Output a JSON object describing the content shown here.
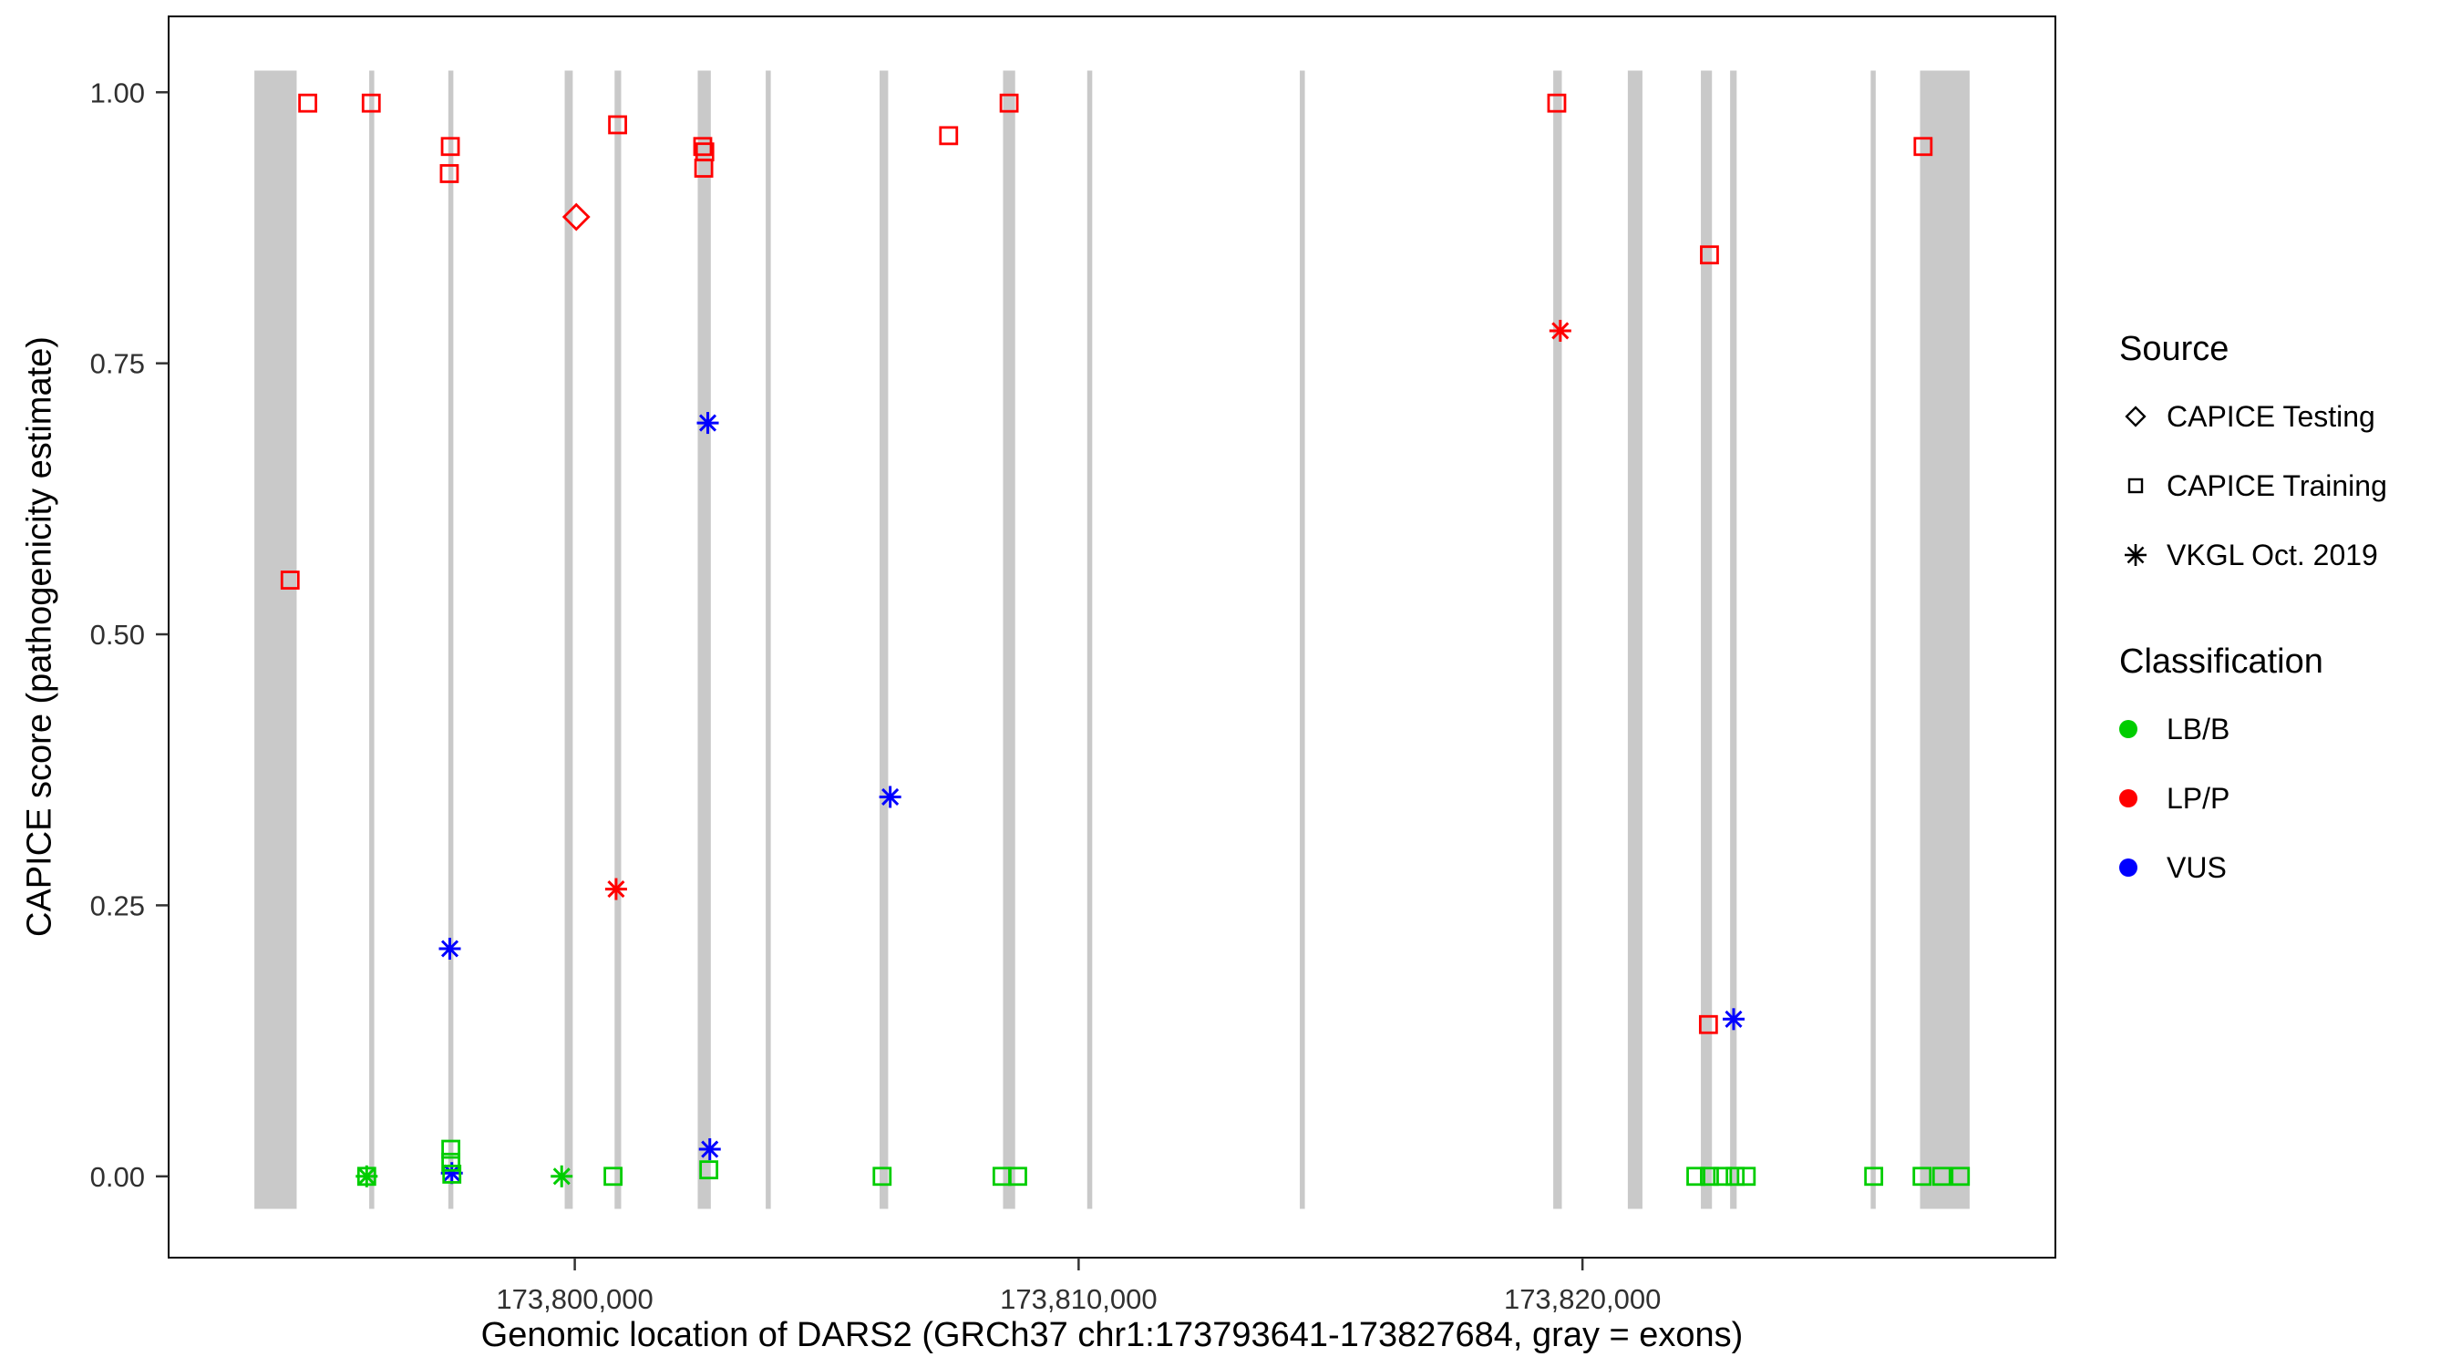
{
  "chart_data": {
    "type": "scatter",
    "title": "",
    "xlabel": "Genomic location of DARS2 (GRCh37 chr1:173793641-173827684, gray = exons)",
    "ylabel": "CAPICE score (pathogenicity estimate)",
    "x_domain": [
      173791939,
      173829386
    ],
    "y_domain": [
      -0.075,
      1.07
    ],
    "grid": false,
    "legend_position": "right",
    "exon_color": "#c9c9c9",
    "exon_y": [
      -0.03,
      1.02
    ],
    "x_ticks": [
      {
        "pos": 173800000,
        "label": "173,800,000"
      },
      {
        "pos": 173810000,
        "label": "173,810,000"
      },
      {
        "pos": 173820000,
        "label": "173,820,000"
      }
    ],
    "y_ticks": [
      {
        "value": 0.0,
        "label": "0.00"
      },
      {
        "value": 0.25,
        "label": "0.25"
      },
      {
        "value": 0.5,
        "label": "0.50"
      },
      {
        "value": 0.75,
        "label": "0.75"
      },
      {
        "value": 1.0,
        "label": "1.00"
      }
    ],
    "source_shapes": {
      "CAPICE Testing": "diamond",
      "CAPICE Training": "square",
      "VKGL Oct. 2019": "asterisk"
    },
    "class_colors": {
      "LB/B": "#00cd00",
      "LP/P": "#ff0000",
      "VUS": "#0000ff"
    },
    "exons": [
      {
        "start": 173793641,
        "end": 173794480
      },
      {
        "start": 173795920,
        "end": 173796020
      },
      {
        "start": 173797490,
        "end": 173797590
      },
      {
        "start": 173799800,
        "end": 173799960
      },
      {
        "start": 173800790,
        "end": 173800920
      },
      {
        "start": 173802440,
        "end": 173802700
      },
      {
        "start": 173803790,
        "end": 173803890
      },
      {
        "start": 173806050,
        "end": 173806220
      },
      {
        "start": 173808500,
        "end": 173808740
      },
      {
        "start": 173810170,
        "end": 173810270
      },
      {
        "start": 173814390,
        "end": 173814490
      },
      {
        "start": 173819420,
        "end": 173819590
      },
      {
        "start": 173820900,
        "end": 173821190
      },
      {
        "start": 173822350,
        "end": 173822570
      },
      {
        "start": 173822930,
        "end": 173823060
      },
      {
        "start": 173825720,
        "end": 173825820
      },
      {
        "start": 173826700,
        "end": 173827684
      }
    ],
    "points": [
      {
        "pos": 173794350,
        "score": 0.55,
        "source": "CAPICE Training",
        "class": "LP/P"
      },
      {
        "pos": 173794700,
        "score": 0.99,
        "source": "CAPICE Training",
        "class": "LP/P"
      },
      {
        "pos": 173795960,
        "score": 0.99,
        "source": "CAPICE Training",
        "class": "LP/P"
      },
      {
        "pos": 173797530,
        "score": 0.95,
        "source": "CAPICE Training",
        "class": "LP/P"
      },
      {
        "pos": 173797510,
        "score": 0.925,
        "source": "CAPICE Training",
        "class": "LP/P"
      },
      {
        "pos": 173800850,
        "score": 0.97,
        "source": "CAPICE Training",
        "class": "LP/P"
      },
      {
        "pos": 173802540,
        "score": 0.95,
        "source": "CAPICE Training",
        "class": "LP/P"
      },
      {
        "pos": 173802580,
        "score": 0.945,
        "source": "CAPICE Training",
        "class": "LP/P"
      },
      {
        "pos": 173802560,
        "score": 0.93,
        "source": "CAPICE Training",
        "class": "LP/P"
      },
      {
        "pos": 173807420,
        "score": 0.96,
        "source": "CAPICE Training",
        "class": "LP/P"
      },
      {
        "pos": 173808620,
        "score": 0.99,
        "source": "CAPICE Training",
        "class": "LP/P"
      },
      {
        "pos": 173819490,
        "score": 0.99,
        "source": "CAPICE Training",
        "class": "LP/P"
      },
      {
        "pos": 173822520,
        "score": 0.85,
        "source": "CAPICE Training",
        "class": "LP/P"
      },
      {
        "pos": 173822500,
        "score": 0.14,
        "source": "CAPICE Training",
        "class": "LP/P"
      },
      {
        "pos": 173826760,
        "score": 0.95,
        "source": "CAPICE Training",
        "class": "LP/P"
      },
      {
        "pos": 173800030,
        "score": 0.885,
        "source": "CAPICE Testing",
        "class": "LP/P"
      },
      {
        "pos": 173800820,
        "score": 0.265,
        "source": "VKGL Oct. 2019",
        "class": "LP/P"
      },
      {
        "pos": 173819560,
        "score": 0.78,
        "source": "VKGL Oct. 2019",
        "class": "LP/P"
      },
      {
        "pos": 173802640,
        "score": 0.695,
        "source": "VKGL Oct. 2019",
        "class": "VUS"
      },
      {
        "pos": 173806260,
        "score": 0.35,
        "source": "VKGL Oct. 2019",
        "class": "VUS"
      },
      {
        "pos": 173797520,
        "score": 0.21,
        "source": "VKGL Oct. 2019",
        "class": "VUS"
      },
      {
        "pos": 173823000,
        "score": 0.145,
        "source": "VKGL Oct. 2019",
        "class": "VUS"
      },
      {
        "pos": 173802680,
        "score": 0.025,
        "source": "VKGL Oct. 2019",
        "class": "VUS"
      },
      {
        "pos": 173797560,
        "score": 0.003,
        "source": "VKGL Oct. 2019",
        "class": "VUS"
      },
      {
        "pos": 173795870,
        "score": 0.0,
        "source": "CAPICE Training",
        "class": "LB/B"
      },
      {
        "pos": 173797540,
        "score": 0.025,
        "source": "CAPICE Training",
        "class": "LB/B"
      },
      {
        "pos": 173797540,
        "score": 0.013,
        "source": "CAPICE Training",
        "class": "LB/B"
      },
      {
        "pos": 173797560,
        "score": 0.002,
        "source": "CAPICE Training",
        "class": "LB/B"
      },
      {
        "pos": 173800760,
        "score": 0.0,
        "source": "CAPICE Training",
        "class": "LB/B"
      },
      {
        "pos": 173802660,
        "score": 0.006,
        "source": "CAPICE Training",
        "class": "LB/B"
      },
      {
        "pos": 173806100,
        "score": 0.0,
        "source": "CAPICE Training",
        "class": "LB/B"
      },
      {
        "pos": 173808480,
        "score": 0.0,
        "source": "CAPICE Training",
        "class": "LB/B"
      },
      {
        "pos": 173808790,
        "score": 0.0,
        "source": "CAPICE Training",
        "class": "LB/B"
      },
      {
        "pos": 173822250,
        "score": 0.0,
        "source": "CAPICE Training",
        "class": "LB/B"
      },
      {
        "pos": 173822520,
        "score": 0.0,
        "source": "CAPICE Training",
        "class": "LB/B"
      },
      {
        "pos": 173822780,
        "score": 0.0,
        "source": "CAPICE Training",
        "class": "LB/B"
      },
      {
        "pos": 173823030,
        "score": 0.0,
        "source": "CAPICE Training",
        "class": "LB/B"
      },
      {
        "pos": 173823250,
        "score": 0.0,
        "source": "CAPICE Training",
        "class": "LB/B"
      },
      {
        "pos": 173825780,
        "score": 0.0,
        "source": "CAPICE Training",
        "class": "LB/B"
      },
      {
        "pos": 173826740,
        "score": 0.0,
        "source": "CAPICE Training",
        "class": "LB/B"
      },
      {
        "pos": 173827130,
        "score": 0.0,
        "source": "CAPICE Training",
        "class": "LB/B"
      },
      {
        "pos": 173827500,
        "score": 0.0,
        "source": "CAPICE Training",
        "class": "LB/B"
      },
      {
        "pos": 173795870,
        "score": 0.0,
        "source": "VKGL Oct. 2019",
        "class": "LB/B"
      },
      {
        "pos": 173799740,
        "score": 0.0,
        "source": "VKGL Oct. 2019",
        "class": "LB/B"
      }
    ]
  },
  "legend": {
    "source": {
      "title": "Source",
      "items": [
        {
          "label": "CAPICE Testing",
          "shape": "diamond"
        },
        {
          "label": "CAPICE Training",
          "shape": "square"
        },
        {
          "label": "VKGL Oct. 2019",
          "shape": "asterisk"
        }
      ]
    },
    "classification": {
      "title": "Classification",
      "items": [
        {
          "label": "LB/B",
          "color": "#00cd00"
        },
        {
          "label": "LP/P",
          "color": "#ff0000"
        },
        {
          "label": "VUS",
          "color": "#0000ff"
        }
      ]
    }
  }
}
